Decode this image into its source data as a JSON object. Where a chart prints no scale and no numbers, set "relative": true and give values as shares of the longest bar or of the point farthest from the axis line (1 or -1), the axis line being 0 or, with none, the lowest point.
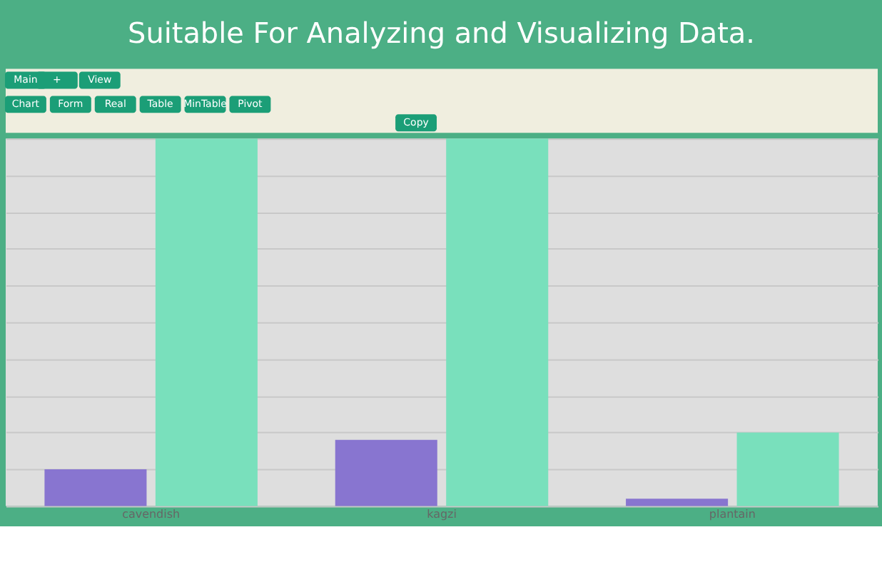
{
  "chart_data": {
    "type": "bar",
    "title": "Suitable For Analyzing and Visualizing Data.",
    "categories": [
      "cavendish",
      "kagzi",
      "plantain"
    ],
    "relative": true,
    "series": [
      {
        "color": "#8875d0",
        "values": [
          0.1,
          0.18,
          0.02
        ]
      },
      {
        "color": "#79e0bc",
        "values": [
          1,
          1,
          0.2
        ]
      }
    ],
    "grid": "y",
    "annotations": [
      "Main",
      "+",
      "View",
      "Chart",
      "Form",
      "Real",
      "Table",
      "MinTable",
      "Pivot",
      "Copy"
    ]
  }
}
